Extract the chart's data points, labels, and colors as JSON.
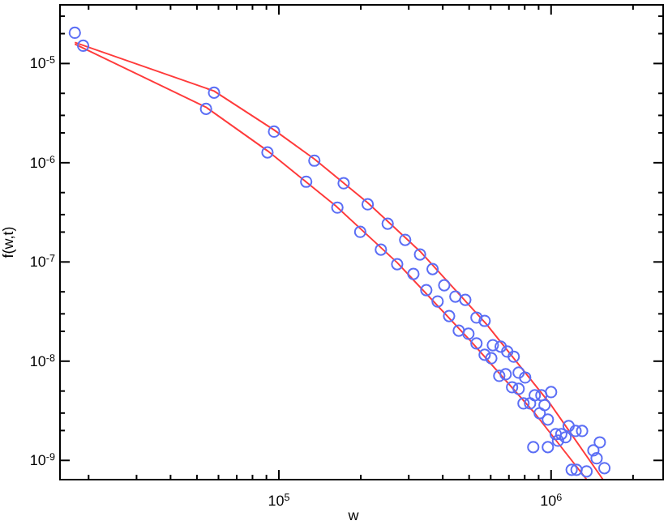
{
  "chart_data": {
    "type": "scatter",
    "xlabel": "w",
    "ylabel": "f(w,t)",
    "log": "xy",
    "grid": false,
    "marker": "circle",
    "xlim": [
      15700,
      2580000
    ],
    "ylim": [
      6.4e-10,
      3.9e-05
    ],
    "xticks": [
      {
        "value": 20000,
        "label": null
      },
      {
        "value": 30000,
        "label": null
      },
      {
        "value": 40000,
        "label": null
      },
      {
        "value": 50000,
        "label": null
      },
      {
        "value": 60000,
        "label": null
      },
      {
        "value": 70000,
        "label": null
      },
      {
        "value": 80000,
        "label": null
      },
      {
        "value": 90000,
        "label": null
      },
      {
        "value": 100000,
        "label": "10$^{5}$"
      },
      {
        "value": 200000,
        "label": null
      },
      {
        "value": 300000,
        "label": null
      },
      {
        "value": 400000,
        "label": null
      },
      {
        "value": 500000,
        "label": null
      },
      {
        "value": 600000,
        "label": null
      },
      {
        "value": 700000,
        "label": null
      },
      {
        "value": 800000,
        "label": null
      },
      {
        "value": 900000,
        "label": null
      },
      {
        "value": 1000000,
        "label": "10$^{6}$"
      },
      {
        "value": 2000000,
        "label": null
      }
    ],
    "yticks": [
      {
        "value": 1e-09,
        "label": "10$^{-9}$"
      },
      {
        "value": 2e-09,
        "label": null
      },
      {
        "value": 3e-09,
        "label": null
      },
      {
        "value": 5e-09,
        "label": null
      },
      {
        "value": 1e-08,
        "label": "10$^{-8}$"
      },
      {
        "value": 2e-08,
        "label": null
      },
      {
        "value": 3e-08,
        "label": null
      },
      {
        "value": 5e-08,
        "label": null
      },
      {
        "value": 1e-07,
        "label": "10$^{-7}$"
      },
      {
        "value": 2e-07,
        "label": null
      },
      {
        "value": 3e-07,
        "label": null
      },
      {
        "value": 5e-07,
        "label": null
      },
      {
        "value": 1e-06,
        "label": "10$^{-6}$"
      },
      {
        "value": 2e-06,
        "label": null
      },
      {
        "value": 3e-06,
        "label": null
      },
      {
        "value": 5e-06,
        "label": null
      },
      {
        "value": 1e-05,
        "label": "10$^{-5}$"
      },
      {
        "value": 2e-05,
        "label": null
      },
      {
        "value": 3e-05,
        "label": null
      }
    ],
    "series": [
      {
        "type": "line",
        "color": "#ff3b3b",
        "marker": "none",
        "line_style": "solid",
        "x": [
          17800,
          57800,
          96000,
          135000,
          212000,
          330000,
          578000,
          1000000,
          1550000
        ],
        "values": [
          1.63e-05,
          5.28e-06,
          2.14e-06,
          1.09e-06,
          3.95e-07,
          1.28e-07,
          2.37e-08,
          3.61e-09,
          6.43e-10
        ]
      },
      {
        "type": "line",
        "color": "#ff3b3b",
        "marker": "none",
        "line_style": "solid",
        "x": [
          17800,
          54000,
          90800,
          162000,
          272000,
          504000,
          871000,
          1350000
        ],
        "values": [
          1.57e-05,
          3.63e-06,
          1.32e-06,
          3.66e-07,
          9.85e-08,
          1.62e-08,
          2.99e-09,
          6.43e-10
        ]
      },
      {
        "color": "#5b6ef5",
        "x": [
          17800,
          57800,
          96000,
          135000,
          173000,
          212000,
          251000,
          291000,
          330000,
          367000,
          405000,
          445000,
          484000,
          532000,
          570000,
          611000,
          653000,
          690000,
          729000,
          760000,
          803000,
          871000,
          921000,
          1000000,
          946000,
          1160000,
          1230000,
          1300000,
          1510000,
          1430000,
          1470000,
          1570000,
          1350000
        ],
        "values": [
          2.04e-05,
          5.08e-06,
          2.06e-06,
          1.05e-06,
          6.21e-07,
          3.81e-07,
          2.43e-07,
          1.67e-07,
          1.19e-07,
          8.48e-08,
          5.82e-08,
          4.48e-08,
          4.15e-08,
          2.75e-08,
          2.55e-08,
          1.45e-08,
          1.4e-08,
          1.25e-08,
          1.11e-08,
          7.66e-09,
          6.84e-09,
          4.53e-09,
          4.53e-09,
          4.88e-09,
          3.61e-09,
          2.22e-09,
          1.98e-09,
          1.98e-09,
          1.52e-09,
          1.26e-09,
          1.05e-09,
          8.36e-10,
          7.75e-10
        ]
      },
      {
        "color": "#5b6ef5",
        "x": [
          19100,
          54000,
          90800,
          126000,
          164000,
          199000,
          237000,
          272000,
          312000,
          348000,
          383000,
          422000,
          458000,
          497000,
          532000,
          570000,
          603000,
          645000,
          681000,
          719000,
          760000,
          792000,
          837000,
          908000,
          973000,
          1040000,
          1090000,
          1130000,
          1060000,
          860000,
          973000,
          1190000,
          1240000
        ],
        "values": [
          1.51e-05,
          3.49e-06,
          1.27e-06,
          6.44e-07,
          3.53e-07,
          2.01e-07,
          1.33e-07,
          9.49e-08,
          7.57e-08,
          5.2e-08,
          4e-08,
          2.85e-08,
          2.03e-08,
          1.89e-08,
          1.51e-08,
          1.16e-08,
          1.07e-08,
          7.11e-09,
          7.38e-09,
          5.46e-09,
          5.26e-09,
          3.75e-09,
          3.75e-09,
          2.99e-09,
          2.58e-09,
          1.84e-09,
          1.84e-09,
          1.71e-09,
          1.58e-09,
          1.36e-09,
          1.36e-09,
          8.04e-10,
          8.04e-10
        ]
      }
    ]
  }
}
